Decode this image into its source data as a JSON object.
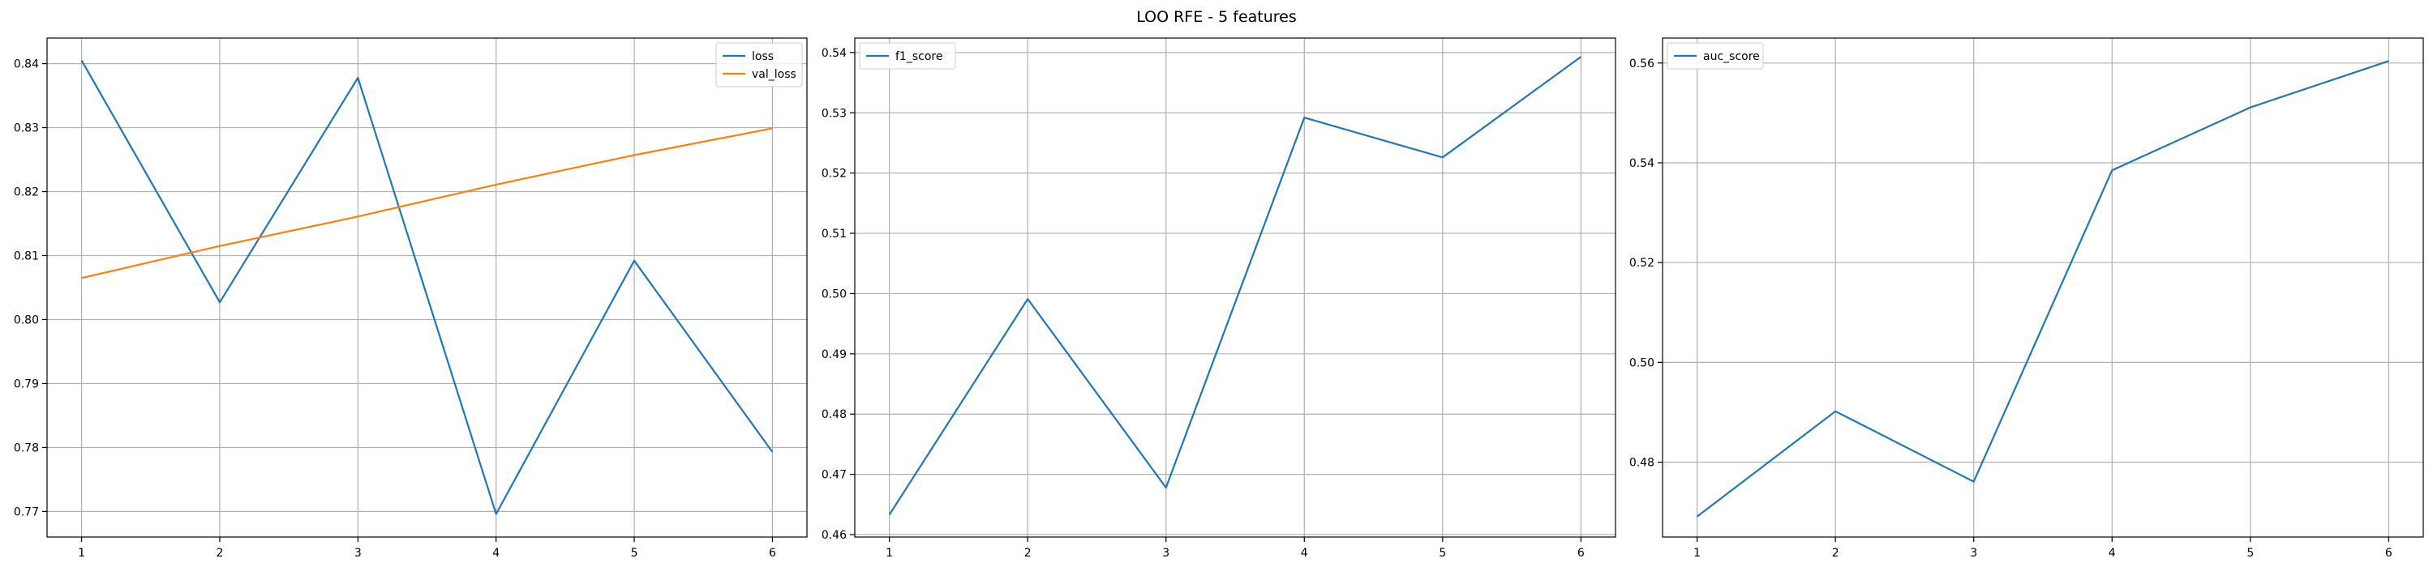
{
  "figure": {
    "title": "LOO RFE - 5 features"
  },
  "colors": {
    "blue": "#1f77b4",
    "orange": "#ff7f0e",
    "grid": "#b0b0b0",
    "axis": "#000000",
    "legend_border": "#cccccc"
  },
  "chart_data": [
    {
      "type": "line",
      "title": "",
      "xlabel": "",
      "ylabel": "",
      "x": [
        1,
        2,
        3,
        4,
        5,
        6
      ],
      "xlim": [
        0.75,
        6.25
      ],
      "ylim": [
        0.766,
        0.844
      ],
      "yticks": [
        "0.77",
        "0.78",
        "0.79",
        "0.80",
        "0.81",
        "0.82",
        "0.83",
        "0.84"
      ],
      "xticks": [
        "1",
        "2",
        "3",
        "4",
        "5",
        "6"
      ],
      "grid": true,
      "legend": "top-right",
      "series": [
        {
          "name": "loss",
          "color": "#1f77b4",
          "values": [
            0.8405,
            0.8027,
            0.8378,
            0.7696,
            0.8092,
            0.7793
          ]
        },
        {
          "name": "val_loss",
          "color": "#ff7f0e",
          "values": [
            0.8065,
            0.8115,
            0.8161,
            0.8211,
            0.8257,
            0.8299
          ]
        }
      ]
    },
    {
      "type": "line",
      "title": "",
      "xlabel": "",
      "ylabel": "",
      "x": [
        1,
        2,
        3,
        4,
        5,
        6
      ],
      "xlim": [
        0.75,
        6.25
      ],
      "ylim": [
        0.4596,
        0.5424
      ],
      "yticks": [
        "0.46",
        "0.47",
        "0.48",
        "0.49",
        "0.50",
        "0.51",
        "0.52",
        "0.53",
        "0.54"
      ],
      "xticks": [
        "1",
        "2",
        "3",
        "4",
        "5",
        "6"
      ],
      "grid": true,
      "legend": "top-left",
      "series": [
        {
          "name": "f1_score",
          "color": "#1f77b4",
          "values": [
            0.4633,
            0.4991,
            0.4678,
            0.5292,
            0.5226,
            0.5393
          ]
        }
      ]
    },
    {
      "type": "line",
      "title": "",
      "xlabel": "",
      "ylabel": "",
      "x": [
        1,
        2,
        3,
        4,
        5,
        6
      ],
      "xlim": [
        0.75,
        6.25
      ],
      "ylim": [
        0.465,
        0.565
      ],
      "yticks": [
        "0.48",
        "0.50",
        "0.52",
        "0.54",
        "0.56"
      ],
      "xticks": [
        "1",
        "2",
        "3",
        "4",
        "5",
        "6"
      ],
      "grid": true,
      "legend": "top-left",
      "series": [
        {
          "name": "auc_score",
          "color": "#1f77b4",
          "values": [
            0.4691,
            0.4902,
            0.4761,
            0.5385,
            0.5511,
            0.5604
          ]
        }
      ]
    }
  ]
}
